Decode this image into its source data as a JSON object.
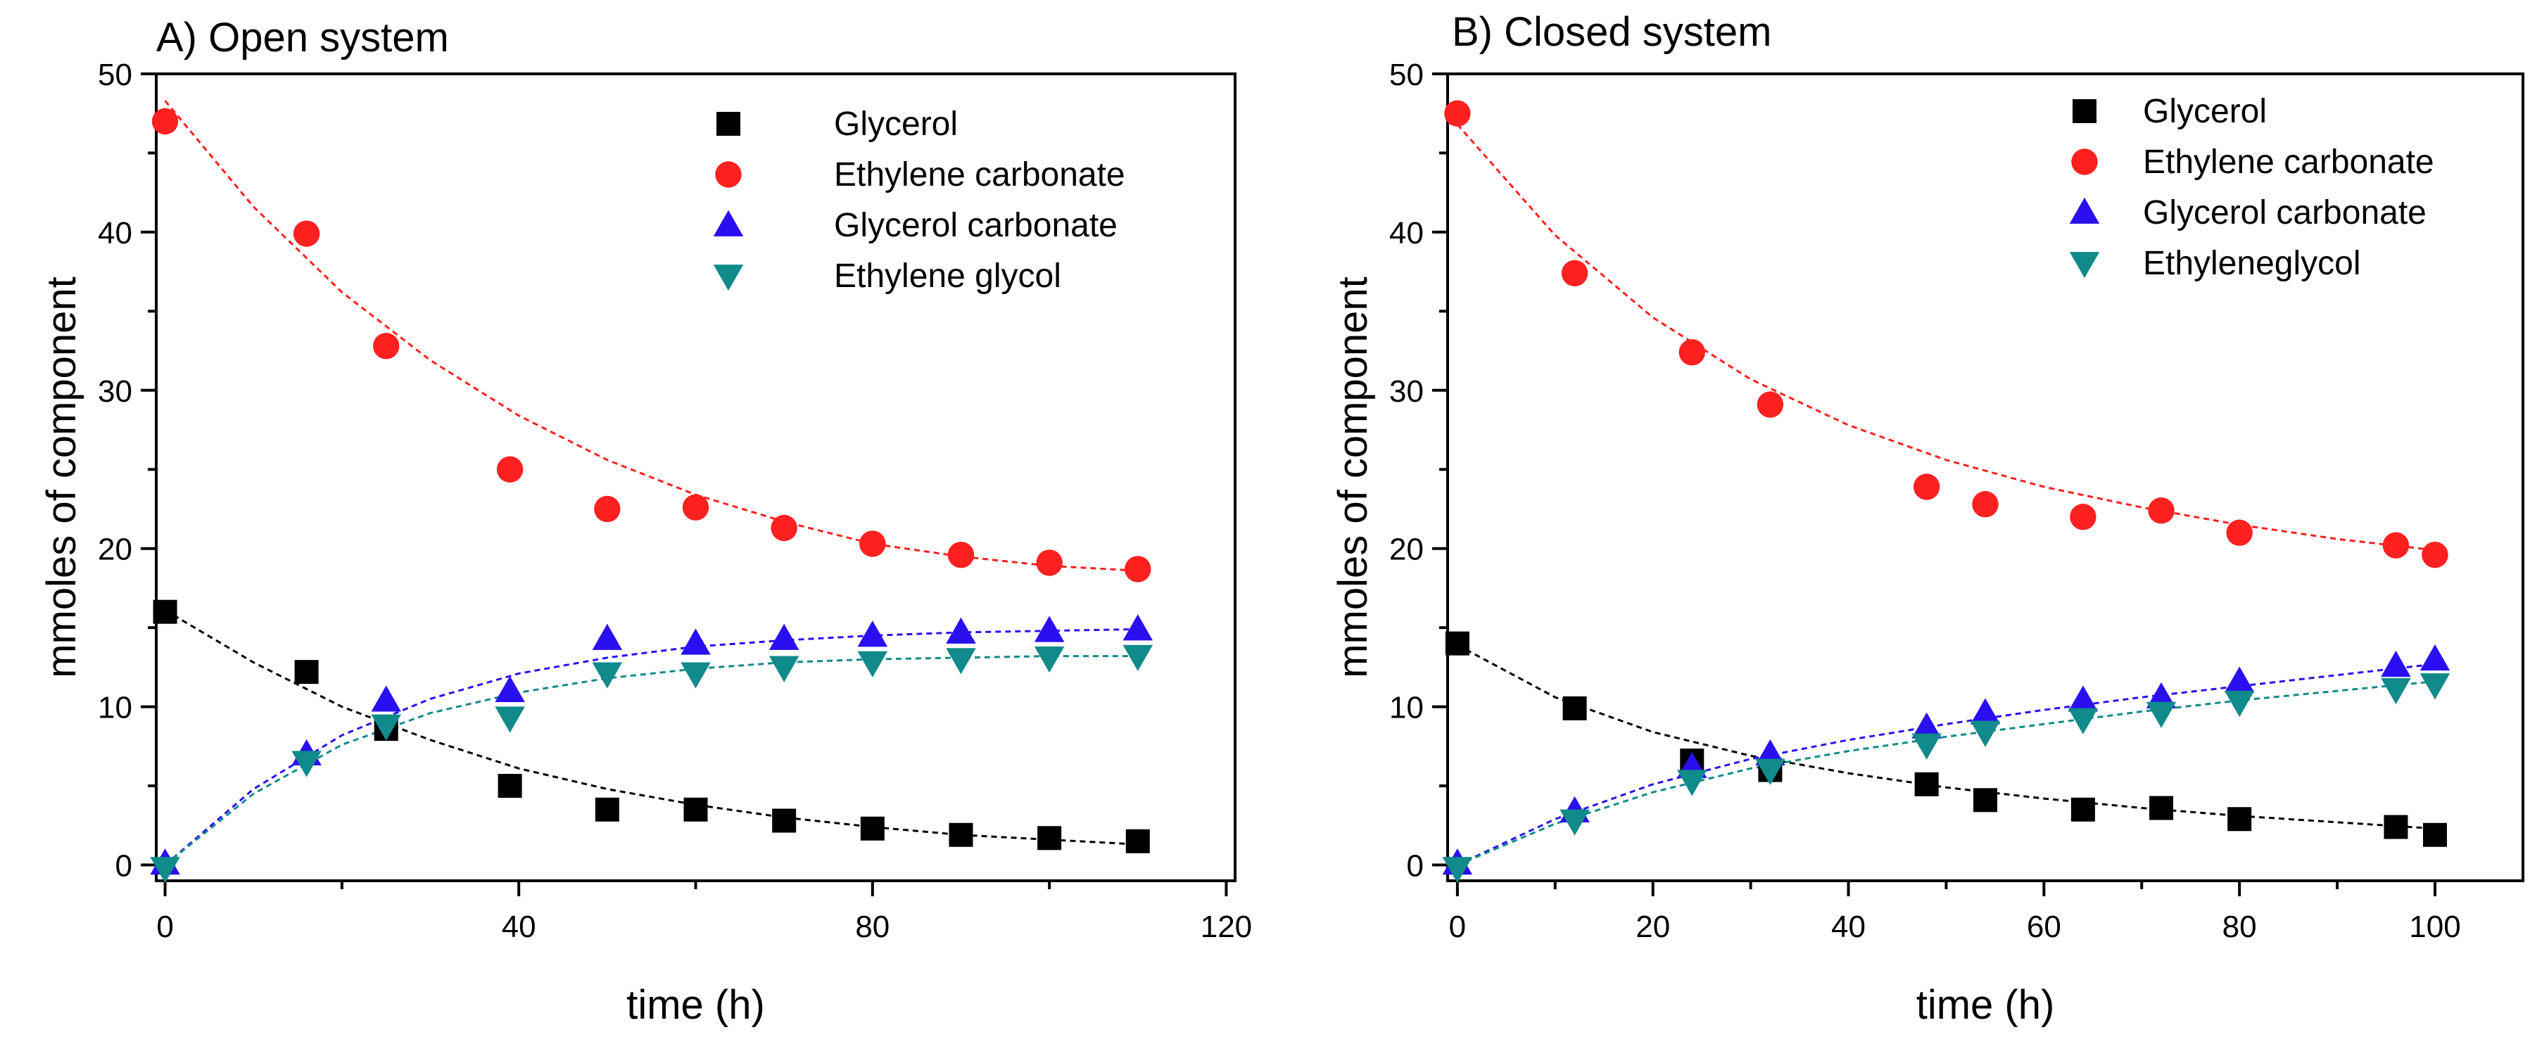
{
  "colors": {
    "glycerol": "#000000",
    "ethylene_carbonate": "#ff2020",
    "glycerol_carbonate": "#2a10f0",
    "ethylene_glycol": "#108a8a",
    "glycerol_fit": "#000000",
    "ethylene_carbonate_fit": "#ff2020",
    "glycerol_carbonate_fit": "#2a10f0",
    "ethylene_glycol_fit": "#108a8a"
  },
  "chart_data": [
    {
      "type": "scatter",
      "title": "A) Open system",
      "xlabel": "time (h)",
      "ylabel": "mmoles of component",
      "xlim": [
        -1,
        121
      ],
      "ylim": [
        -1,
        50
      ],
      "xticks": [
        "0",
        "40",
        "80",
        "120"
      ],
      "yticks": [
        "0",
        "10",
        "20",
        "30",
        "40",
        "50"
      ],
      "legend_position": "top-right",
      "grid": false,
      "series": [
        {
          "name": "Glycerol",
          "marker": "square",
          "color": "#000000",
          "x": [
            0,
            16,
            25,
            39,
            50,
            60,
            70,
            80,
            90,
            100,
            110
          ],
          "y": [
            16.0,
            12.2,
            8.6,
            5.0,
            3.5,
            3.5,
            2.8,
            2.3,
            1.9,
            1.7,
            1.5
          ]
        },
        {
          "name": "Ethylene carbonate",
          "marker": "circle",
          "color": "#ff2020",
          "x": [
            0,
            16,
            25,
            39,
            50,
            60,
            70,
            80,
            90,
            100,
            110
          ],
          "y": [
            47.0,
            39.9,
            32.8,
            25.0,
            22.5,
            22.6,
            21.3,
            20.3,
            19.6,
            19.1,
            18.7
          ]
        },
        {
          "name": "Glycerol carbonate",
          "marker": "triangle-up",
          "color": "#2a10f0",
          "x": [
            0,
            16,
            25,
            39,
            50,
            60,
            70,
            80,
            90,
            100,
            110
          ],
          "y": [
            0.1,
            7.0,
            10.4,
            11.0,
            14.3,
            14.0,
            14.3,
            14.5,
            14.7,
            14.8,
            14.9
          ]
        },
        {
          "name": "Ethylene glycol",
          "marker": "triangle-down",
          "color": "#108a8a",
          "x": [
            0,
            16,
            25,
            39,
            50,
            60,
            70,
            80,
            90,
            100,
            110
          ],
          "y": [
            -0.2,
            6.5,
            8.8,
            9.3,
            12.1,
            12.1,
            12.5,
            12.8,
            13.0,
            13.1,
            13.2
          ]
        }
      ],
      "fits": [
        {
          "series": "Glycerol",
          "color": "#000000",
          "x": [
            0,
            10,
            20,
            30,
            40,
            50,
            60,
            70,
            80,
            90,
            100,
            110
          ],
          "y": [
            16.1,
            12.8,
            10.0,
            7.9,
            6.1,
            4.8,
            3.8,
            3.0,
            2.4,
            1.9,
            1.6,
            1.3
          ]
        },
        {
          "series": "Ethylene carbonate",
          "color": "#ff2020",
          "x": [
            0,
            10,
            20,
            30,
            40,
            50,
            60,
            70,
            80,
            90,
            100,
            110
          ],
          "y": [
            48.3,
            41.6,
            36.2,
            31.9,
            28.4,
            25.6,
            23.4,
            21.7,
            20.3,
            19.5,
            18.9,
            18.6
          ]
        },
        {
          "series": "Glycerol carbonate",
          "color": "#2a10f0",
          "x": [
            0,
            10,
            20,
            30,
            40,
            50,
            60,
            70,
            80,
            90,
            100,
            110
          ],
          "y": [
            0,
            4.8,
            8.2,
            10.5,
            12.1,
            13.1,
            13.8,
            14.2,
            14.5,
            14.7,
            14.8,
            14.9
          ]
        },
        {
          "series": "Ethylene glycol",
          "color": "#108a8a",
          "x": [
            0,
            10,
            20,
            30,
            40,
            50,
            60,
            70,
            80,
            90,
            100,
            110
          ],
          "y": [
            0,
            4.5,
            7.6,
            9.6,
            10.9,
            11.8,
            12.4,
            12.8,
            13.0,
            13.1,
            13.2,
            13.2
          ]
        }
      ]
    },
    {
      "type": "scatter",
      "title": "B) Closed system",
      "xlabel": "time (h)",
      "ylabel": "mmoles of component",
      "xlim": [
        -1,
        109
      ],
      "ylim": [
        -1,
        50
      ],
      "xticks": [
        "0",
        "20",
        "40",
        "60",
        "80",
        "100"
      ],
      "yticks": [
        "0",
        "10",
        "20",
        "30",
        "40",
        "50"
      ],
      "legend_position": "top-right",
      "grid": false,
      "series": [
        {
          "name": "Glycerol",
          "marker": "square",
          "color": "#000000",
          "x": [
            0,
            12,
            24,
            32,
            48,
            54,
            64,
            72,
            80,
            96,
            100
          ],
          "y": [
            14.0,
            9.9,
            6.6,
            6.0,
            5.1,
            4.1,
            3.5,
            3.6,
            2.9,
            2.4,
            1.9
          ]
        },
        {
          "name": "Ethylene carbonate",
          "marker": "circle",
          "color": "#ff2020",
          "x": [
            0,
            12,
            24,
            32,
            48,
            54,
            64,
            72,
            80,
            96,
            100
          ],
          "y": [
            47.5,
            37.4,
            32.4,
            29.1,
            23.9,
            22.8,
            22.0,
            22.4,
            21.0,
            20.2,
            19.6
          ]
        },
        {
          "name": "Glycerol carbonate",
          "marker": "triangle-up",
          "color": "#2a10f0",
          "x": [
            0,
            12,
            24,
            32,
            48,
            54,
            64,
            72,
            80,
            96,
            100
          ],
          "y": [
            0.1,
            3.4,
            6.2,
            7.0,
            8.7,
            9.6,
            10.4,
            10.6,
            11.6,
            12.6,
            13.0
          ]
        },
        {
          "name": "Ethyleneglycol",
          "marker": "triangle-down",
          "color": "#108a8a",
          "x": [
            0,
            12,
            24,
            32,
            48,
            54,
            64,
            72,
            80,
            96,
            100
          ],
          "y": [
            -0.2,
            2.8,
            5.3,
            6.0,
            7.6,
            8.4,
            9.2,
            9.6,
            10.3,
            11.1,
            11.4
          ]
        }
      ],
      "fits": [
        {
          "series": "Glycerol",
          "color": "#000000",
          "x": [
            0,
            10,
            20,
            30,
            40,
            50,
            60,
            70,
            80,
            90,
            100
          ],
          "y": [
            13.9,
            10.6,
            8.4,
            6.9,
            5.8,
            4.9,
            4.2,
            3.6,
            3.1,
            2.7,
            2.3
          ]
        },
        {
          "series": "Ethylene carbonate",
          "color": "#ff2020",
          "x": [
            0,
            10,
            20,
            30,
            40,
            50,
            60,
            70,
            80,
            90,
            100
          ],
          "y": [
            46.8,
            39.8,
            34.6,
            30.7,
            27.8,
            25.6,
            23.9,
            22.6,
            21.5,
            20.6,
            19.9
          ]
        },
        {
          "series": "Glycerol carbonate",
          "color": "#2a10f0",
          "x": [
            0,
            10,
            20,
            30,
            40,
            50,
            60,
            70,
            80,
            90,
            100
          ],
          "y": [
            0,
            2.9,
            5.1,
            6.7,
            7.9,
            8.9,
            9.8,
            10.6,
            11.3,
            12.0,
            12.7
          ]
        },
        {
          "series": "Ethyleneglycol",
          "color": "#108a8a",
          "x": [
            0,
            10,
            20,
            30,
            40,
            50,
            60,
            70,
            80,
            90,
            100
          ],
          "y": [
            0,
            2.6,
            4.6,
            6.1,
            7.2,
            8.1,
            8.9,
            9.7,
            10.4,
            11.0,
            11.6
          ]
        }
      ]
    }
  ]
}
